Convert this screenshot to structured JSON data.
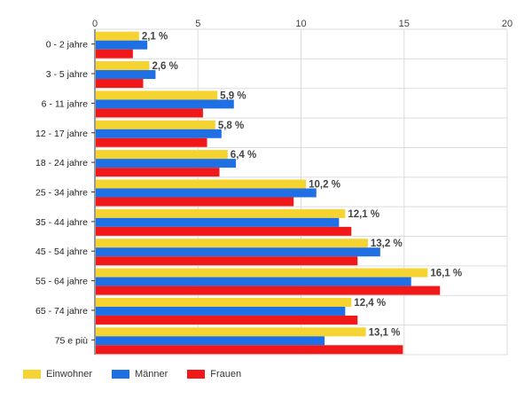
{
  "chart_data": {
    "type": "bar",
    "orientation": "horizontal",
    "categories": [
      "0 - 2 jahre",
      "3 - 5 jahre",
      "6 - 11 jahre",
      "12 - 17 jahre",
      "18 - 24 jahre",
      "25 - 34 jahre",
      "35 - 44 jahre",
      "45 - 54 jahre",
      "55 - 64 jahre",
      "65 - 74 jahre",
      "75 e più"
    ],
    "series": [
      {
        "name": "Einwohner",
        "color": "#f5d431",
        "values": [
          2.1,
          2.6,
          5.9,
          5.8,
          6.4,
          10.2,
          12.1,
          13.2,
          16.1,
          12.4,
          13.1
        ]
      },
      {
        "name": "Männer",
        "color": "#1f6fe5",
        "values": [
          2.5,
          2.9,
          6.7,
          6.1,
          6.8,
          10.7,
          11.8,
          13.8,
          15.3,
          12.1,
          11.1
        ]
      },
      {
        "name": "Frauen",
        "color": "#f01818",
        "values": [
          1.8,
          2.3,
          5.2,
          5.4,
          6.0,
          9.6,
          12.4,
          12.7,
          16.7,
          12.7,
          14.9
        ]
      }
    ],
    "data_labels": [
      "2,1 %",
      "2,6 %",
      "5,9 %",
      "5,8 %",
      "6,4 %",
      "10,2 %",
      "12,1 %",
      "13,2 %",
      "16,1 %",
      "12,4 %",
      "13,1 %"
    ],
    "xlim": [
      0,
      20
    ],
    "xticks": [
      "0",
      "5",
      "10",
      "15",
      "20"
    ],
    "grid": true,
    "legend_position": "bottom-left"
  }
}
